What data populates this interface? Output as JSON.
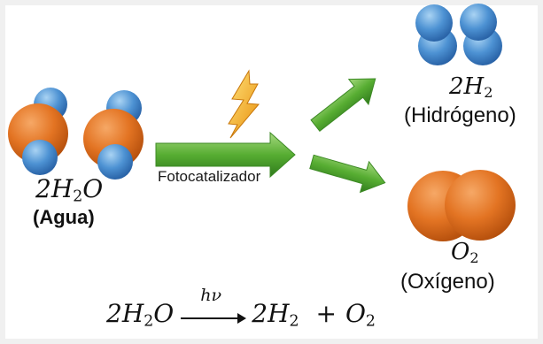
{
  "reactant": {
    "formula_coef": "2",
    "formula_a": "H",
    "formula_sub": "2",
    "formula_b": "O",
    "name": "(Agua)"
  },
  "process": {
    "label": "Fotocatalizador"
  },
  "product_h2": {
    "formula_coef": "2",
    "formula_a": "H",
    "formula_sub": "2",
    "name": "(Hidrógeno)"
  },
  "product_o2": {
    "formula_a": "O",
    "formula_sub": "2",
    "name": "(Oxígeno)"
  },
  "equation": {
    "lhs_coef": "2",
    "lhs_a": "H",
    "lhs_sub": "2",
    "lhs_b": "O",
    "over_arrow": "hν",
    "rhs1_coef": "2",
    "rhs1_a": "H",
    "rhs1_sub": "2",
    "plus": "+",
    "rhs2_a": "O",
    "rhs2_sub": "2"
  },
  "icons": [
    "water-molecule-icon",
    "lightning-icon",
    "hydrogen-molecule-icon",
    "oxygen-molecule-icon",
    "arrow-icon"
  ],
  "colors": {
    "oxygen": "#e0711f",
    "hydrogen": "#4a8fd0",
    "arrow": "#4ea52c",
    "bolt": "#f2b21b"
  }
}
